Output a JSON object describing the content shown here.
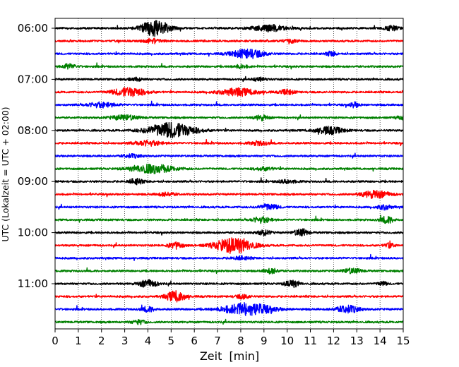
{
  "chart_data": {
    "type": "line",
    "title": "",
    "xlabel": "Zeit  [min]",
    "ylabel": "UTC (Lokalzeit = UTC + 02:00)",
    "xlim": [
      0,
      15
    ],
    "x_ticks": [
      0,
      1,
      2,
      3,
      4,
      5,
      6,
      7,
      8,
      9,
      10,
      11,
      12,
      13,
      14,
      15
    ],
    "y_tick_labels": [
      "06:00",
      "07:00",
      "08:00",
      "09:00",
      "10:00",
      "11:00"
    ],
    "y_tick_trace_index": [
      0,
      4,
      8,
      12,
      16,
      20
    ],
    "grid_x": true,
    "grid_style": "dotted",
    "trace_minutes": 15,
    "trace_color_cycle": [
      "#000000",
      "#ff0000",
      "#0000ff",
      "#008000"
    ],
    "series": [
      {
        "start": "06:00",
        "bursts": [
          [
            4.3,
            0.6,
            1.0
          ],
          [
            9.2,
            0.7,
            0.4
          ],
          [
            14.5,
            0.3,
            0.3
          ]
        ]
      },
      {
        "start": "06:15",
        "bursts": [
          [
            4.2,
            0.4,
            0.25
          ],
          [
            10.2,
            0.3,
            0.2
          ]
        ]
      },
      {
        "start": "06:30",
        "bursts": [
          [
            8.3,
            0.7,
            0.55
          ],
          [
            11.9,
            0.2,
            0.3
          ]
        ]
      },
      {
        "start": "06:45",
        "bursts": [
          [
            0.6,
            0.3,
            0.3
          ],
          [
            8.0,
            0.3,
            0.2
          ]
        ]
      },
      {
        "start": "07:00",
        "bursts": [
          [
            3.5,
            0.3,
            0.2
          ],
          [
            8.8,
            0.3,
            0.2
          ]
        ]
      },
      {
        "start": "07:15",
        "bursts": [
          [
            3.2,
            0.7,
            0.55
          ],
          [
            7.9,
            0.8,
            0.45
          ],
          [
            10.0,
            0.3,
            0.3
          ]
        ]
      },
      {
        "start": "07:30",
        "bursts": [
          [
            2.0,
            0.6,
            0.3
          ],
          [
            12.9,
            0.2,
            0.3
          ]
        ]
      },
      {
        "start": "07:45",
        "bursts": [
          [
            3.0,
            0.6,
            0.3
          ],
          [
            8.9,
            0.3,
            0.3
          ],
          [
            14.9,
            0.2,
            0.2
          ]
        ]
      },
      {
        "start": "08:00",
        "bursts": [
          [
            5.0,
            1.0,
            0.95
          ],
          [
            11.8,
            0.6,
            0.45
          ]
        ]
      },
      {
        "start": "08:15",
        "bursts": [
          [
            4.0,
            0.6,
            0.3
          ],
          [
            8.8,
            0.4,
            0.25
          ]
        ]
      },
      {
        "start": "08:30",
        "bursts": [
          [
            3.3,
            0.4,
            0.2
          ]
        ]
      },
      {
        "start": "08:45",
        "bursts": [
          [
            4.2,
            0.9,
            0.55
          ],
          [
            9.0,
            0.4,
            0.2
          ]
        ]
      },
      {
        "start": "09:00",
        "bursts": [
          [
            3.5,
            0.3,
            0.35
          ],
          [
            10.0,
            0.4,
            0.2
          ]
        ]
      },
      {
        "start": "09:15",
        "bursts": [
          [
            4.8,
            0.4,
            0.2
          ],
          [
            13.8,
            0.6,
            0.45
          ]
        ]
      },
      {
        "start": "09:30",
        "bursts": [
          [
            9.2,
            0.4,
            0.35
          ],
          [
            14.2,
            0.3,
            0.3
          ]
        ]
      },
      {
        "start": "09:45",
        "bursts": [
          [
            8.9,
            0.4,
            0.35
          ],
          [
            14.3,
            0.3,
            0.4
          ]
        ]
      },
      {
        "start": "10:00",
        "bursts": [
          [
            9.0,
            0.3,
            0.3
          ],
          [
            10.6,
            0.3,
            0.45
          ]
        ]
      },
      {
        "start": "10:15",
        "bursts": [
          [
            5.2,
            0.3,
            0.4
          ],
          [
            7.7,
            0.8,
            1.0
          ],
          [
            14.4,
            0.2,
            0.3
          ]
        ]
      },
      {
        "start": "10:30",
        "bursts": [
          [
            8.0,
            0.4,
            0.2
          ]
        ]
      },
      {
        "start": "10:45",
        "bursts": [
          [
            9.3,
            0.3,
            0.3
          ],
          [
            12.8,
            0.4,
            0.3
          ]
        ]
      },
      {
        "start": "11:00",
        "bursts": [
          [
            4.0,
            0.4,
            0.45
          ],
          [
            10.2,
            0.3,
            0.45
          ],
          [
            14.1,
            0.2,
            0.25
          ]
        ]
      },
      {
        "start": "11:15",
        "bursts": [
          [
            5.2,
            0.4,
            0.7
          ],
          [
            8.1,
            0.3,
            0.25
          ]
        ]
      },
      {
        "start": "11:30",
        "bursts": [
          [
            4.0,
            0.3,
            0.3
          ],
          [
            8.3,
            1.0,
            0.8
          ],
          [
            12.6,
            0.5,
            0.45
          ]
        ]
      },
      {
        "start": "11:45",
        "bursts": [
          [
            3.6,
            0.3,
            0.25
          ]
        ]
      }
    ]
  }
}
